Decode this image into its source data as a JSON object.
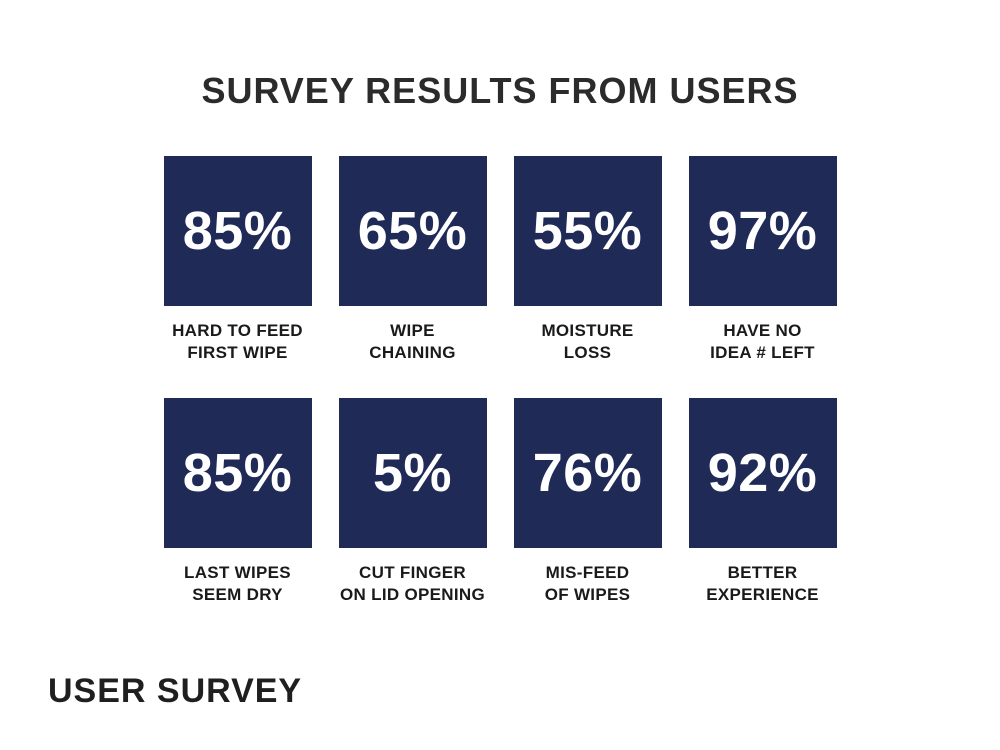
{
  "title": "SURVEY RESULTS FROM USERS",
  "footer": "USER SURVEY",
  "colors": {
    "tile_background": "#1f2a56",
    "value_text": "#ffffff",
    "label_text": "#1a1a1a",
    "page_background": "#ffffff"
  },
  "cards": [
    {
      "value": "85%",
      "lines": [
        "HARD TO FEED",
        "FIRST WIPE"
      ]
    },
    {
      "value": "65%",
      "lines": [
        "WIPE",
        "CHAINING"
      ]
    },
    {
      "value": "55%",
      "lines": [
        "MOISTURE",
        "LOSS"
      ]
    },
    {
      "value": "97%",
      "lines": [
        "HAVE NO",
        "IDEA # LEFT"
      ]
    },
    {
      "value": "85%",
      "lines": [
        "LAST WIPES",
        "SEEM DRY"
      ]
    },
    {
      "value": "5%",
      "lines": [
        "CUT FINGER",
        "ON LID OPENING"
      ]
    },
    {
      "value": "76%",
      "lines": [
        "MIS-FEED",
        "OF WIPES"
      ]
    },
    {
      "value": "92%",
      "lines": [
        "BETTER",
        "EXPERIENCE"
      ]
    }
  ],
  "chart_data": {
    "type": "table",
    "title": "SURVEY RESULTS FROM USERS",
    "categories": [
      "HARD TO FEED FIRST WIPE",
      "WIPE CHAINING",
      "MOISTURE LOSS",
      "HAVE NO IDEA # LEFT",
      "LAST WIPES SEEM DRY",
      "CUT FINGER ON LID OPENING",
      "MIS-FEED OF WIPES",
      "BETTER EXPERIENCE"
    ],
    "values": [
      85,
      65,
      55,
      97,
      85,
      5,
      76,
      92
    ],
    "unit": "%",
    "layout": "2 rows x 4 columns of stat tiles",
    "footer_label": "USER SURVEY"
  }
}
